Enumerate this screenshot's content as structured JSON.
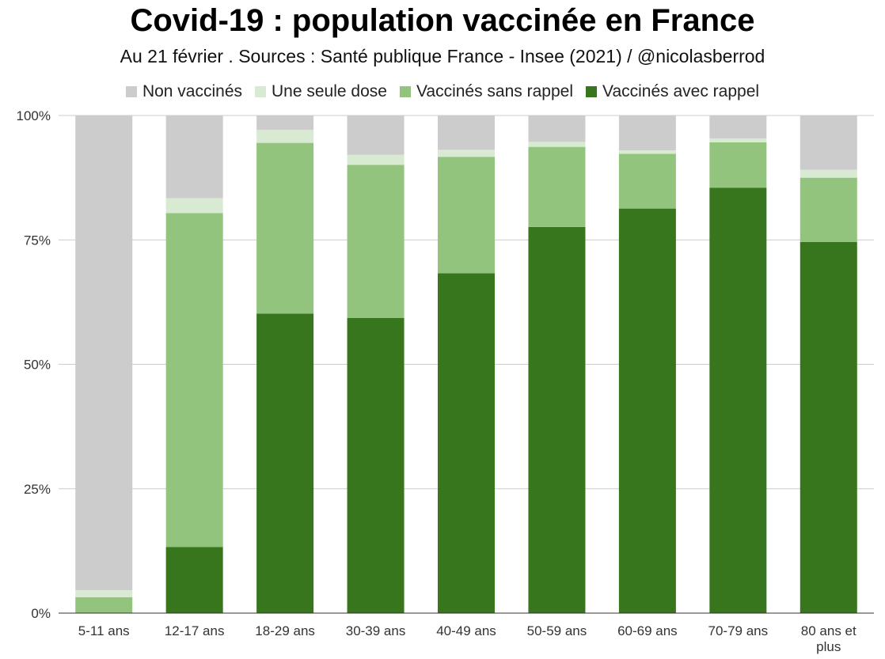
{
  "chart_data": {
    "type": "bar",
    "stacked": true,
    "title": "Covid-19 : population vaccinée en France",
    "subtitle": "Au 21 février . Sources : Santé publique France - Insee (2021) / @nicolasberrod",
    "xlabel": "",
    "ylabel": "",
    "ylim": [
      0,
      100
    ],
    "yticks": [
      "0%",
      "25%",
      "50%",
      "75%",
      "100%"
    ],
    "ytick_values": [
      0,
      25,
      50,
      75,
      100
    ],
    "legend_position": "top-center",
    "grid": true,
    "categories": [
      "5-11 ans",
      "12-17 ans",
      "18-29 ans",
      "30-39 ans",
      "40-49 ans",
      "50-59 ans",
      "60-69 ans",
      "70-79 ans",
      "80 ans et plus"
    ],
    "category_lines": [
      [
        "5-11 ans"
      ],
      [
        "12-17 ans"
      ],
      [
        "18-29 ans"
      ],
      [
        "30-39 ans"
      ],
      [
        "40-49 ans"
      ],
      [
        "50-59 ans"
      ],
      [
        "60-69 ans"
      ],
      [
        "70-79 ans"
      ],
      [
        "80 ans et",
        "plus"
      ]
    ],
    "series": [
      {
        "name": "Vaccinés avec rappel",
        "color": "#38761d",
        "values": [
          0,
          13.3,
          60.2,
          59.3,
          68.3,
          77.6,
          81.3,
          85.5,
          74.6
        ]
      },
      {
        "name": "Vaccinés sans rappel",
        "color": "#93c47d",
        "values": [
          3.2,
          67.1,
          34.3,
          30.8,
          23.4,
          16.1,
          11.0,
          9.1,
          12.9
        ]
      },
      {
        "name": "Une seule dose",
        "color": "#d9ead3",
        "values": [
          1.4,
          3.0,
          2.6,
          2.0,
          1.4,
          1.0,
          0.7,
          0.8,
          1.6
        ]
      },
      {
        "name": "Non vaccinés",
        "color": "#cccccc",
        "values": [
          95.4,
          16.6,
          2.9,
          7.9,
          6.9,
          5.3,
          7.0,
          4.6,
          10.9
        ]
      }
    ],
    "legend_order": [
      "Non vaccinés",
      "Une seule dose",
      "Vaccinés sans rappel",
      "Vaccinés avec rappel"
    ]
  }
}
